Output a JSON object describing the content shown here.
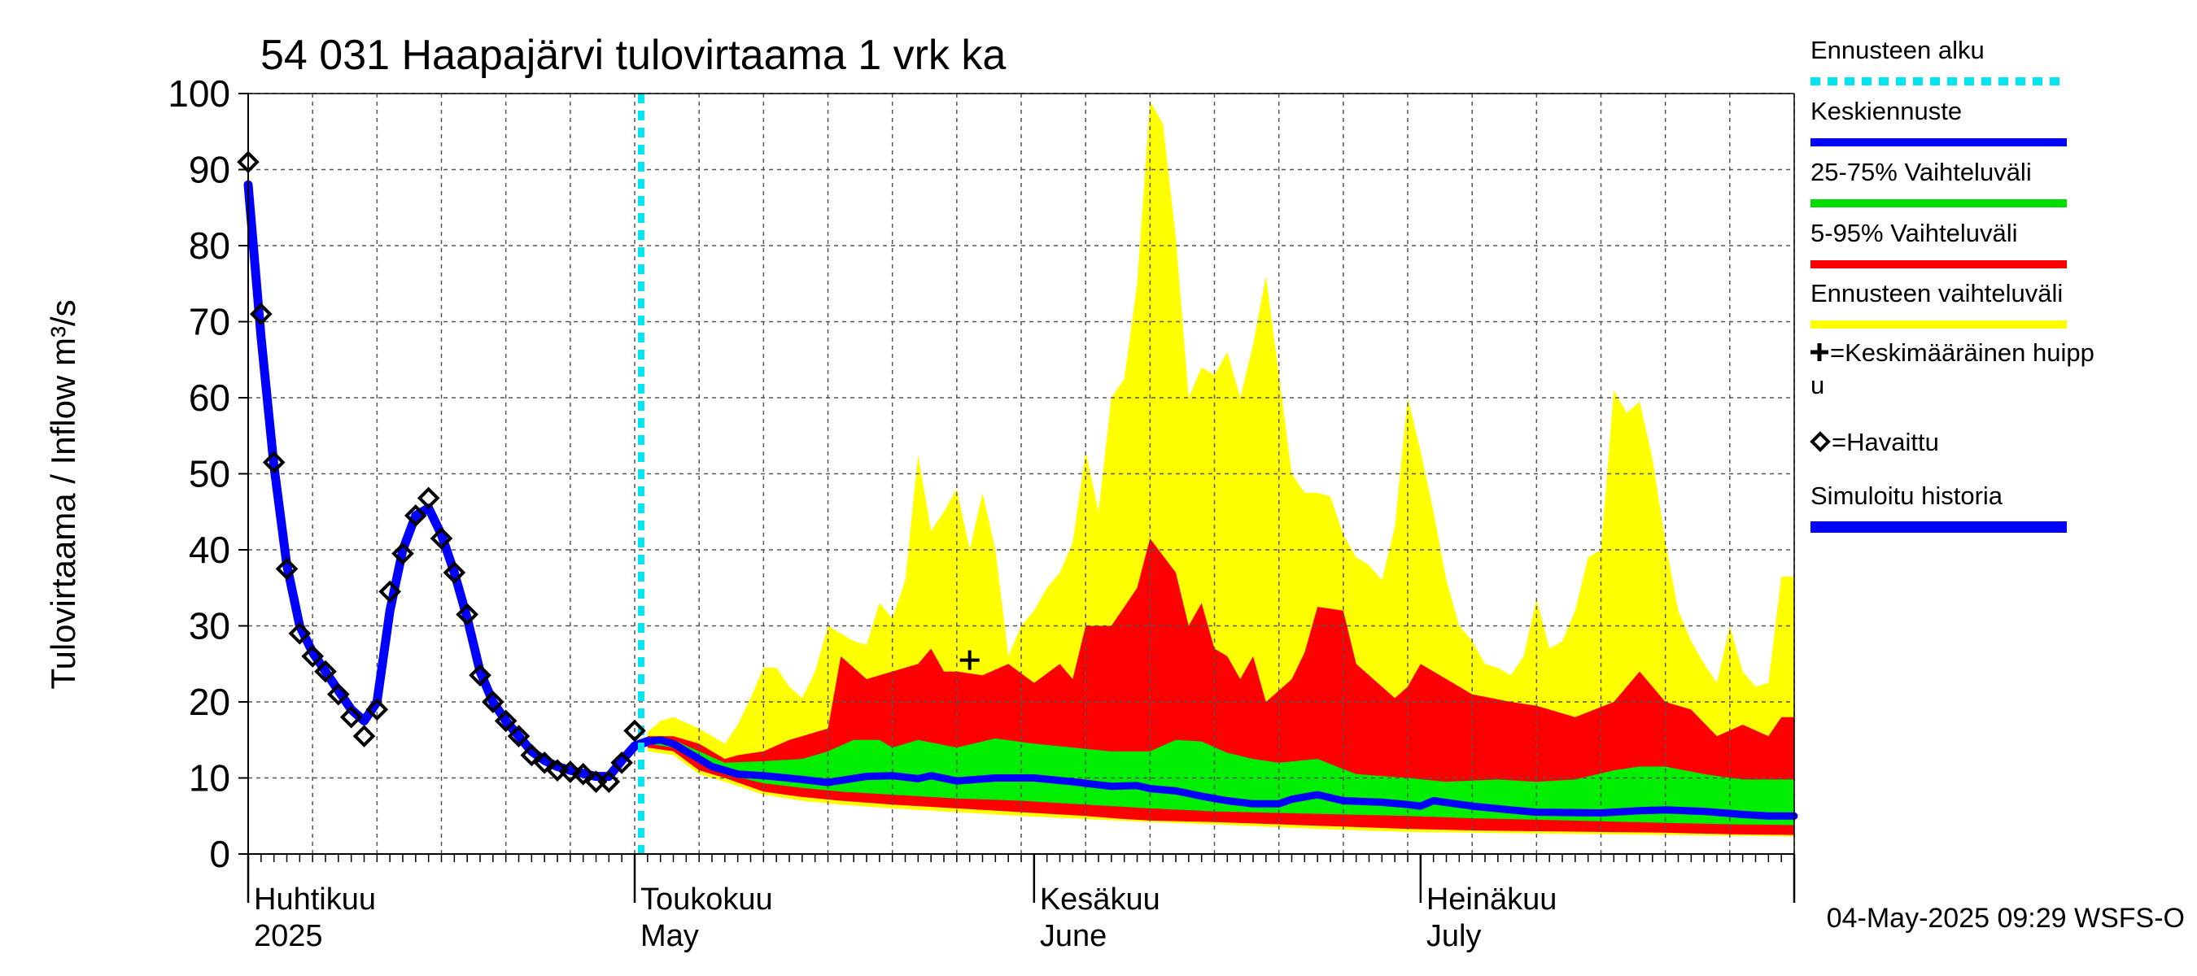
{
  "chart_data": {
    "type": "area",
    "station_title": "54 031 Haapajärvi tulovirtaama 1 vrk ka",
    "ylabel": "Tulovirtaama / Inflow    m³/s",
    "ylim": [
      0,
      100
    ],
    "yticks": [
      0,
      10,
      20,
      30,
      40,
      50,
      60,
      70,
      80,
      90,
      100
    ],
    "x_range_days": [
      0,
      120
    ],
    "x_origin_date": "2025-03-31",
    "month_labels": [
      {
        "day": 0,
        "fi": "Huhtikuu",
        "en": "2025"
      },
      {
        "day": 30,
        "fi": "Toukokuu",
        "en": "May"
      },
      {
        "day": 61,
        "fi": "Kesäkuu",
        "en": "June"
      },
      {
        "day": 91,
        "fi": "Heinäkuu",
        "en": "July"
      }
    ],
    "month_boundaries": [
      0,
      30,
      61,
      91,
      120
    ],
    "forecast_start_day": 30.5,
    "footer": "04-May-2025 09:29 WSFS-O",
    "legend": [
      {
        "label": "Ennusteen alku",
        "color": "#00e5ee",
        "style": "dotted"
      },
      {
        "label": "Keskiennuste",
        "color": "#0000ff",
        "style": "line"
      },
      {
        "label": "25-75% Vaihteluväli",
        "color": "#00dd00",
        "style": "line"
      },
      {
        "label": "5-95% Vaihteluväli",
        "color": "#ff0000",
        "style": "line"
      },
      {
        "label": "Ennusteen vaihteluväli",
        "color": "#ffff00",
        "style": "line"
      },
      {
        "label_line1": "=Keskimääräinen huipp",
        "label_line2": "u",
        "color": "#000000",
        "style": "plus"
      },
      {
        "label": "=Havaittu",
        "color": "#000000",
        "style": "diamond"
      },
      {
        "label": "Simuloitu historia",
        "color": "#0000ff",
        "style": "thickline"
      }
    ],
    "observed": [
      [
        0,
        91
      ],
      [
        1,
        71
      ],
      [
        2,
        51.5
      ],
      [
        3,
        37.5
      ],
      [
        4,
        29
      ],
      [
        5,
        26
      ],
      [
        6,
        24
      ],
      [
        7,
        21
      ],
      [
        8,
        18
      ],
      [
        9,
        15.5
      ],
      [
        10,
        19
      ],
      [
        11,
        34.5
      ],
      [
        12,
        39.5
      ],
      [
        13,
        44.5
      ],
      [
        14,
        46.8
      ],
      [
        15,
        41.5
      ],
      [
        16,
        37
      ],
      [
        17,
        31.5
      ],
      [
        18,
        23.5
      ],
      [
        19,
        20
      ],
      [
        20,
        17.5
      ],
      [
        21,
        15.5
      ],
      [
        22,
        13
      ],
      [
        23,
        12
      ],
      [
        24,
        11
      ],
      [
        25,
        10.8
      ],
      [
        26,
        10.5
      ],
      [
        27,
        9.5
      ],
      [
        28,
        9.5
      ],
      [
        29,
        12
      ],
      [
        30,
        16.2
      ]
    ],
    "simulated_history": [
      [
        0,
        88
      ],
      [
        1,
        68
      ],
      [
        2,
        51
      ],
      [
        3,
        38
      ],
      [
        4,
        30
      ],
      [
        5,
        26.5
      ],
      [
        6,
        24
      ],
      [
        7,
        21.5
      ],
      [
        8,
        19
      ],
      [
        9,
        17.5
      ],
      [
        10,
        20
      ],
      [
        11,
        32
      ],
      [
        12,
        40
      ],
      [
        13,
        44.5
      ],
      [
        14,
        45.5
      ],
      [
        15,
        42
      ],
      [
        16,
        37
      ],
      [
        17,
        31
      ],
      [
        18,
        24
      ],
      [
        19,
        20
      ],
      [
        20,
        17.5
      ],
      [
        21,
        15.5
      ],
      [
        22,
        13.5
      ],
      [
        23,
        12.3
      ],
      [
        24,
        11.5
      ],
      [
        25,
        11
      ],
      [
        26,
        10.6
      ],
      [
        27,
        10.2
      ],
      [
        28,
        10.2
      ],
      [
        29,
        12.3
      ],
      [
        30,
        14.2
      ],
      [
        31,
        14.8
      ]
    ],
    "forecast_median": [
      [
        31,
        14.8
      ],
      [
        32,
        15
      ],
      [
        33,
        14.5
      ],
      [
        34,
        13.5
      ],
      [
        35,
        12.5
      ],
      [
        36,
        11.5
      ],
      [
        37,
        11
      ],
      [
        38,
        10.5
      ],
      [
        40,
        10.3
      ],
      [
        43,
        9.8
      ],
      [
        45,
        9.4
      ],
      [
        48,
        10.2
      ],
      [
        50,
        10.3
      ],
      [
        52,
        9.9
      ],
      [
        53,
        10.3
      ],
      [
        55,
        9.6
      ],
      [
        58,
        10
      ],
      [
        61,
        10
      ],
      [
        64,
        9.5
      ],
      [
        67,
        8.9
      ],
      [
        69,
        9
      ],
      [
        70,
        8.6
      ],
      [
        72,
        8.3
      ],
      [
        74,
        7.6
      ],
      [
        76,
        7
      ],
      [
        78,
        6.6
      ],
      [
        80,
        6.6
      ],
      [
        81,
        7.2
      ],
      [
        83,
        7.8
      ],
      [
        85,
        7
      ],
      [
        88,
        6.8
      ],
      [
        90,
        6.5
      ],
      [
        91,
        6.3
      ],
      [
        92,
        7
      ],
      [
        95,
        6.3
      ],
      [
        98,
        5.8
      ],
      [
        100,
        5.5
      ],
      [
        105,
        5.4
      ],
      [
        108,
        5.7
      ],
      [
        110,
        5.8
      ],
      [
        113,
        5.6
      ],
      [
        116,
        5.2
      ],
      [
        118,
        5
      ],
      [
        120,
        5
      ]
    ],
    "forecast_p25": [
      [
        31,
        14.5
      ],
      [
        33,
        14
      ],
      [
        35,
        12
      ],
      [
        37,
        10.5
      ],
      [
        40,
        9.3
      ],
      [
        43,
        8.7
      ],
      [
        46,
        8.2
      ],
      [
        50,
        7.8
      ],
      [
        55,
        7.3
      ],
      [
        60,
        7
      ],
      [
        65,
        6.5
      ],
      [
        70,
        6
      ],
      [
        75,
        5.6
      ],
      [
        80,
        5.4
      ],
      [
        85,
        5.2
      ],
      [
        90,
        5
      ],
      [
        95,
        4.7
      ],
      [
        100,
        4.5
      ],
      [
        105,
        4.3
      ],
      [
        110,
        4.1
      ],
      [
        115,
        3.9
      ],
      [
        120,
        3.8
      ]
    ],
    "forecast_p75": [
      [
        31,
        15
      ],
      [
        33,
        15
      ],
      [
        35,
        13.5
      ],
      [
        37,
        12
      ],
      [
        40,
        12.2
      ],
      [
        43,
        12.5
      ],
      [
        45,
        13.5
      ],
      [
        47,
        15
      ],
      [
        49,
        15
      ],
      [
        50,
        14
      ],
      [
        52,
        15
      ],
      [
        55,
        14
      ],
      [
        58,
        15.2
      ],
      [
        61,
        14.5
      ],
      [
        64,
        14
      ],
      [
        67,
        13.5
      ],
      [
        70,
        13.5
      ],
      [
        72,
        15
      ],
      [
        74,
        14.8
      ],
      [
        76,
        13.3
      ],
      [
        78,
        12.5
      ],
      [
        80,
        12
      ],
      [
        83,
        12.5
      ],
      [
        86,
        10.5
      ],
      [
        90,
        10
      ],
      [
        93,
        9.5
      ],
      [
        97,
        9.8
      ],
      [
        100,
        9.5
      ],
      [
        103,
        9.8
      ],
      [
        106,
        11
      ],
      [
        108,
        11.5
      ],
      [
        110,
        11.5
      ],
      [
        113,
        10.5
      ],
      [
        116,
        9.8
      ],
      [
        120,
        9.8
      ]
    ],
    "forecast_p05": [
      [
        31,
        14
      ],
      [
        33,
        13.5
      ],
      [
        35,
        11
      ],
      [
        37,
        10
      ],
      [
        40,
        8.2
      ],
      [
        43,
        7.5
      ],
      [
        46,
        7
      ],
      [
        50,
        6.5
      ],
      [
        55,
        6
      ],
      [
        60,
        5.5
      ],
      [
        65,
        5
      ],
      [
        68,
        4.6
      ],
      [
        70,
        4.4
      ],
      [
        75,
        4.2
      ],
      [
        80,
        3.9
      ],
      [
        85,
        3.6
      ],
      [
        90,
        3.3
      ],
      [
        95,
        3.1
      ],
      [
        100,
        3
      ],
      [
        105,
        2.9
      ],
      [
        110,
        2.8
      ],
      [
        115,
        2.6
      ],
      [
        120,
        2.5
      ]
    ],
    "forecast_p95": [
      [
        31,
        15.5
      ],
      [
        33,
        15.5
      ],
      [
        35,
        14.5
      ],
      [
        37,
        12.5
      ],
      [
        38,
        13
      ],
      [
        40,
        13.5
      ],
      [
        42,
        15
      ],
      [
        44,
        16
      ],
      [
        45,
        16.5
      ],
      [
        46,
        26
      ],
      [
        48,
        23
      ],
      [
        50,
        24
      ],
      [
        52,
        25
      ],
      [
        53,
        27
      ],
      [
        54,
        24
      ],
      [
        55,
        24
      ],
      [
        57,
        23.5
      ],
      [
        59,
        25
      ],
      [
        61,
        22.5
      ],
      [
        63,
        25
      ],
      [
        64,
        23
      ],
      [
        65,
        30
      ],
      [
        67,
        30
      ],
      [
        69,
        35
      ],
      [
        70,
        41.5
      ],
      [
        72,
        37
      ],
      [
        73,
        30
      ],
      [
        74,
        33
      ],
      [
        75,
        27
      ],
      [
        76,
        26
      ],
      [
        77,
        23
      ],
      [
        78,
        26
      ],
      [
        79,
        20
      ],
      [
        81,
        23
      ],
      [
        82,
        26.5
      ],
      [
        83,
        32.5
      ],
      [
        85,
        32
      ],
      [
        86,
        25
      ],
      [
        88,
        22
      ],
      [
        89,
        20.5
      ],
      [
        90,
        22
      ],
      [
        91,
        25
      ],
      [
        92,
        24
      ],
      [
        95,
        21
      ],
      [
        98,
        20
      ],
      [
        100,
        19.5
      ],
      [
        103,
        18
      ],
      [
        106,
        20
      ],
      [
        108,
        24
      ],
      [
        110,
        20
      ],
      [
        112,
        19
      ],
      [
        114,
        15.5
      ],
      [
        116,
        17
      ],
      [
        118,
        15.5
      ],
      [
        119,
        18
      ],
      [
        120,
        18
      ]
    ],
    "forecast_min": [
      [
        31,
        13.5
      ],
      [
        33,
        13
      ],
      [
        35,
        10.5
      ],
      [
        37,
        9.5
      ],
      [
        40,
        7.8
      ],
      [
        43,
        7
      ],
      [
        46,
        6.5
      ],
      [
        50,
        6
      ],
      [
        55,
        5.5
      ],
      [
        60,
        5
      ],
      [
        65,
        4.6
      ],
      [
        70,
        4.2
      ],
      [
        75,
        3.9
      ],
      [
        80,
        3.5
      ],
      [
        85,
        3.2
      ],
      [
        90,
        2.9
      ],
      [
        95,
        2.8
      ],
      [
        100,
        2.7
      ],
      [
        105,
        2.6
      ],
      [
        110,
        2.5
      ],
      [
        115,
        2.4
      ],
      [
        120,
        2.3
      ]
    ],
    "forecast_max": [
      [
        31,
        16
      ],
      [
        32,
        17.5
      ],
      [
        33,
        18
      ],
      [
        35,
        16.5
      ],
      [
        37,
        14.5
      ],
      [
        38,
        17
      ],
      [
        39,
        20.5
      ],
      [
        40,
        24.5
      ],
      [
        41,
        24.5
      ],
      [
        42,
        22
      ],
      [
        43,
        20.5
      ],
      [
        44,
        24
      ],
      [
        45,
        30
      ],
      [
        46,
        29
      ],
      [
        47,
        28
      ],
      [
        48,
        27.5
      ],
      [
        49,
        33
      ],
      [
        50,
        31
      ],
      [
        51,
        36
      ],
      [
        52,
        52.5
      ],
      [
        53,
        42.5
      ],
      [
        54,
        45
      ],
      [
        55,
        48
      ],
      [
        56,
        40
      ],
      [
        57,
        47.5
      ],
      [
        58,
        40
      ],
      [
        59,
        26
      ],
      [
        60,
        30
      ],
      [
        61,
        32
      ],
      [
        62,
        35
      ],
      [
        63,
        37
      ],
      [
        64,
        41
      ],
      [
        65,
        53
      ],
      [
        66,
        45
      ],
      [
        67,
        60
      ],
      [
        68,
        62.5
      ],
      [
        69,
        75
      ],
      [
        70,
        99
      ],
      [
        71,
        96
      ],
      [
        72,
        81
      ],
      [
        73,
        60
      ],
      [
        74,
        64
      ],
      [
        75,
        63
      ],
      [
        76,
        66
      ],
      [
        77,
        60
      ],
      [
        78,
        67
      ],
      [
        79,
        76
      ],
      [
        80,
        63
      ],
      [
        81,
        50
      ],
      [
        82,
        47.5
      ],
      [
        83,
        47.5
      ],
      [
        84,
        47
      ],
      [
        85,
        42
      ],
      [
        86,
        39
      ],
      [
        87,
        38
      ],
      [
        88,
        36
      ],
      [
        89,
        43
      ],
      [
        90,
        60
      ],
      [
        91,
        53
      ],
      [
        92,
        45
      ],
      [
        93,
        36
      ],
      [
        94,
        30
      ],
      [
        95,
        28
      ],
      [
        96,
        25
      ],
      [
        97,
        24.5
      ],
      [
        98,
        23.5
      ],
      [
        99,
        26
      ],
      [
        100,
        33.5
      ],
      [
        101,
        27
      ],
      [
        102,
        28
      ],
      [
        103,
        32
      ],
      [
        104,
        39
      ],
      [
        105,
        40
      ],
      [
        106,
        61
      ],
      [
        107,
        58
      ],
      [
        108,
        59.5
      ],
      [
        109,
        52
      ],
      [
        110,
        41
      ],
      [
        111,
        32
      ],
      [
        112,
        28
      ],
      [
        113,
        25
      ],
      [
        114,
        22.5
      ],
      [
        115,
        30
      ],
      [
        116,
        24
      ],
      [
        117,
        22
      ],
      [
        118,
        22.5
      ],
      [
        119,
        36.5
      ],
      [
        120,
        36.5
      ]
    ],
    "average_peak": {
      "day": 56,
      "value": 25.5
    }
  }
}
